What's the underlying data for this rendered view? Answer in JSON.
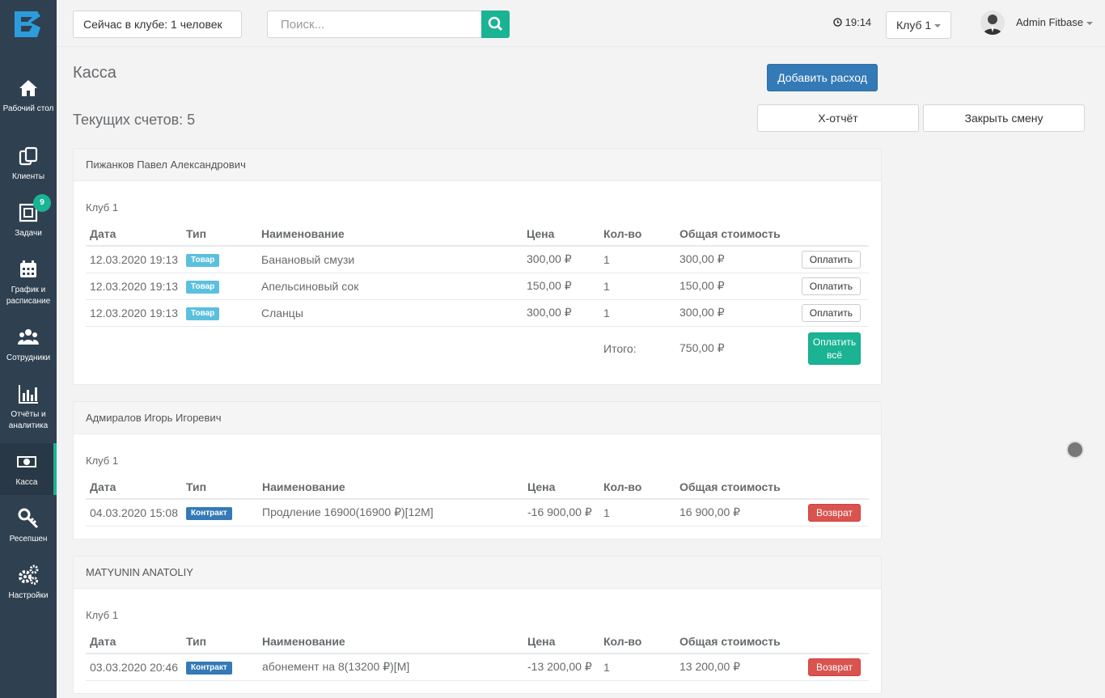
{
  "sidebar": {
    "items": [
      {
        "label": "Рабочий стол",
        "icon": "home-icon"
      },
      {
        "label": "Клиенты",
        "icon": "clients-icon"
      },
      {
        "label": "Задачи",
        "icon": "tasks-icon",
        "badge": "9"
      },
      {
        "label": "График и расписание",
        "icon": "calendar-icon"
      },
      {
        "label": "Сотрудники",
        "icon": "staff-icon"
      },
      {
        "label": "Отчёты и аналитика",
        "icon": "chart-icon"
      },
      {
        "label": "Касса",
        "icon": "cash-icon",
        "active": true
      },
      {
        "label": "Ресепшен",
        "icon": "key-icon"
      },
      {
        "label": "Настройки",
        "icon": "gears-icon"
      }
    ]
  },
  "topbar": {
    "club_now": "Сейчас в клубе: 1 человек",
    "search_placeholder": "Поиск...",
    "time": "19:14",
    "club_select": "Клуб 1",
    "user": "Admin Fitbase"
  },
  "page": {
    "title": "Касса",
    "counter": "Текущих счетов: 5",
    "add_expense": "Добавить расход",
    "x_report": "X-отчёт",
    "close_shift": "Закрыть смену"
  },
  "columns": [
    "Дата",
    "Тип",
    "Наименование",
    "Цена",
    "Кол-во",
    "Общая стоимость"
  ],
  "accounts": [
    {
      "client": "Пижанков Павел Александрович",
      "club": "Клуб 1",
      "rows": [
        {
          "date": "12.03.2020 19:13",
          "type": "Товар",
          "name": "Банановый смузи",
          "price": "300,00 ₽",
          "qty": "1",
          "total": "300,00 ₽",
          "action": "Оплатить"
        },
        {
          "date": "12.03.2020 19:13",
          "type": "Товар",
          "name": "Апельсиновый сок",
          "price": "150,00 ₽",
          "qty": "1",
          "total": "150,00 ₽",
          "action": "Оплатить"
        },
        {
          "date": "12.03.2020 19:13",
          "type": "Товар",
          "name": "Сланцы",
          "price": "300,00 ₽",
          "qty": "1",
          "total": "300,00 ₽",
          "action": "Оплатить"
        }
      ],
      "sum_label": "Итого:",
      "sum": "750,00 ₽",
      "pay_all": "Оплатить всё"
    },
    {
      "client": "Адмиралов Игорь Игоревич",
      "club": "Клуб 1",
      "rows": [
        {
          "date": "04.03.2020 15:08",
          "type": "Контракт",
          "name": "Продление 16900(16900 ₽)[12M]",
          "price": "-16 900,00 ₽",
          "qty": "1",
          "total": "16 900,00 ₽",
          "action": "Возврат"
        }
      ]
    },
    {
      "client": "MATYUNIN ANATOLIY",
      "club": "Клуб 1",
      "rows": [
        {
          "date": "03.03.2020 20:46",
          "type": "Контракт",
          "name": "абонемент на 8(13200 ₽)[M]",
          "price": "-13 200,00 ₽",
          "qty": "1",
          "total": "13 200,00 ₽",
          "action": "Возврат"
        }
      ]
    }
  ],
  "colors": {
    "sidebar": "#2f4050",
    "accent": "#1ab394",
    "primary": "#337ab7",
    "danger": "#d9534f",
    "info": "#5bc0de"
  }
}
